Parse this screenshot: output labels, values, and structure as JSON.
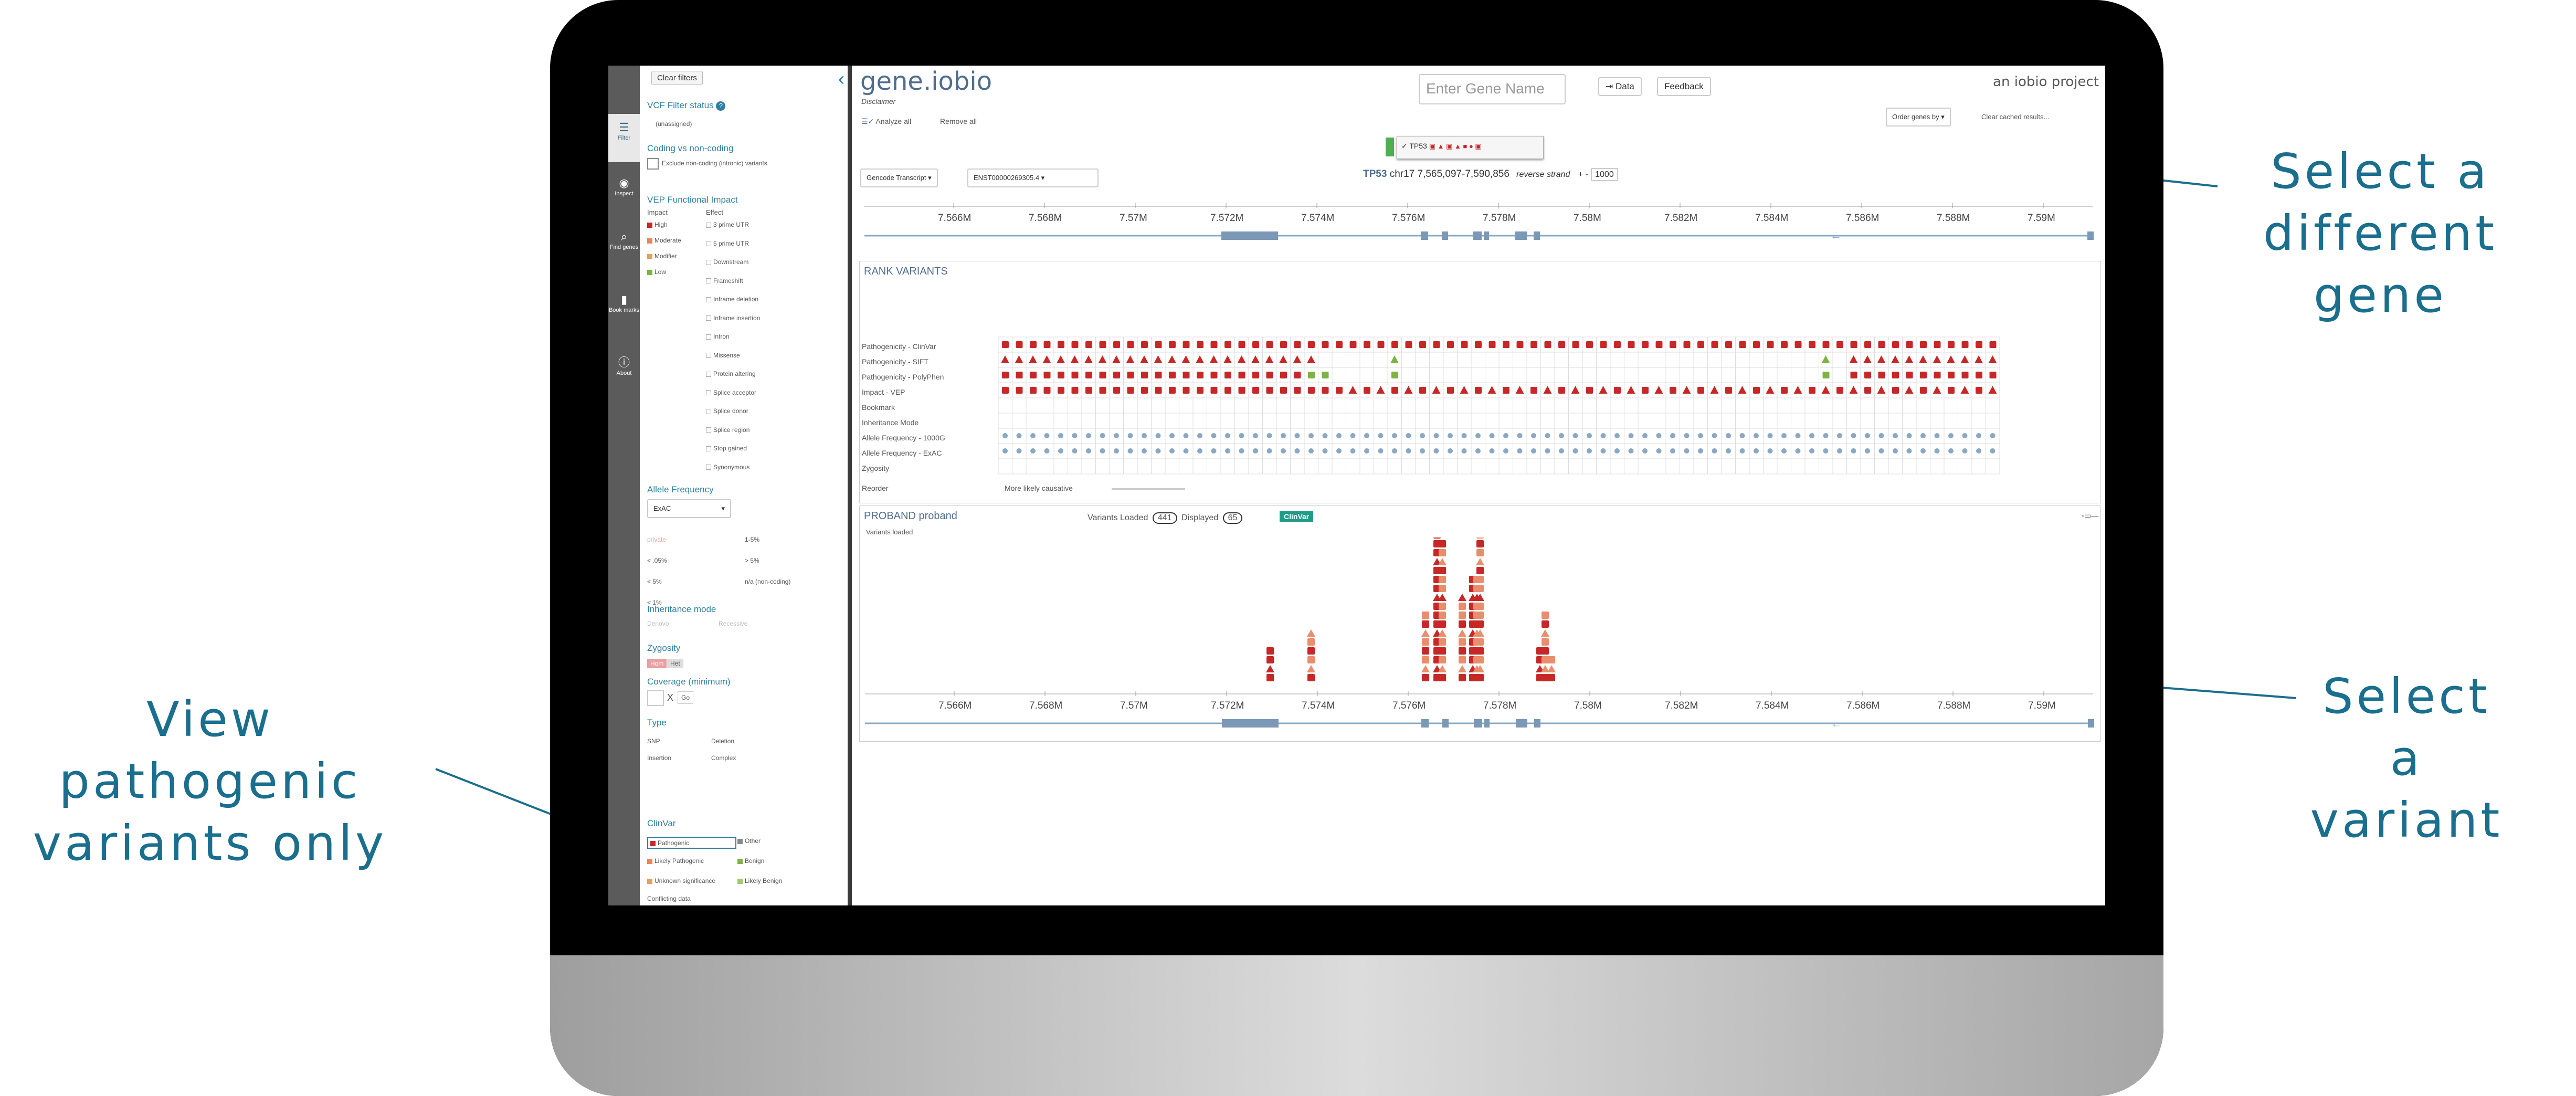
{
  "callouts": {
    "select_gene": [
      "Select a",
      "different gene"
    ],
    "select_variant": [
      "Select a",
      "variant"
    ],
    "pathogenic": [
      "View pathogenic",
      "variants only"
    ]
  },
  "rail": [
    {
      "label": "Filter",
      "icon": "filter-icon"
    },
    {
      "label": "Inspect",
      "icon": "eye-icon"
    },
    {
      "label": "Find genes",
      "icon": "find-genes-icon"
    },
    {
      "label": "Book marks",
      "icon": "bookmark-icon"
    },
    {
      "label": "About",
      "icon": "info-icon"
    }
  ],
  "sidebar": {
    "clear_filters": "Clear filters",
    "vcf_title": "VCF Filter status",
    "vcf_value": "(unassigned)",
    "coding_title": "Coding vs non-coding",
    "coding_opt": "Exclude non-coding (intronic) variants",
    "vep_title": "VEP Functional Impact",
    "impact_label": "Impact",
    "effect_label": "Effect",
    "impacts": [
      "High",
      "Moderate",
      "Modifier",
      "Low"
    ],
    "effects": [
      "3 prime UTR",
      "5 prime UTR",
      "Downstream",
      "Frameshift",
      "Inframe deletion",
      "Inframe insertion",
      "Intron",
      "Missense",
      "Protein altering",
      "Splice acceptor",
      "Splice donor",
      "Splice region",
      "Stop gained",
      "Synonymous"
    ],
    "af_title": "Allele Frequency",
    "af_select": "ExAC",
    "af_left": [
      "private",
      "< .05%",
      "< 5%",
      "< 1%"
    ],
    "af_right": [
      "1-5%",
      "> 5%",
      "n/a (non-coding)"
    ],
    "inh_title": "Inheritance mode",
    "inh_opts": [
      "Denovo",
      "Recessive"
    ],
    "zyg_title": "Zygosity",
    "zyg_opts": [
      "Hom",
      "Het"
    ],
    "cov_title": "Coverage (minimum)",
    "cov_x": "X",
    "cov_go": "Go",
    "type_title": "Type",
    "types": [
      "SNP",
      "Deletion",
      "Insertion",
      "Complex"
    ],
    "clinvar_title": "ClinVar",
    "clinvar_opts": [
      "Pathogenic",
      "Other",
      "Likely Pathogenic",
      "Benign",
      "Unknown significance",
      "Likely Benign"
    ],
    "conflict": "Conflicting data"
  },
  "toolbar": {
    "brand": "gene.iobio",
    "disclaimer": "Disclaimer",
    "analyze": "Analyze all",
    "remove": "Remove all",
    "gene_placeholder": "Enter Gene Name",
    "data": "Data",
    "feedback": "Feedback",
    "iobio": "an iobio project",
    "order": "Order genes by",
    "clear_cache": "Clear cached results...",
    "transcript": "Gencode Transcript",
    "transcript_id": "ENST00000269305.4",
    "gene_chip": "TP53"
  },
  "locus": {
    "gene": "TP53",
    "coords": "chr17 7,565,097-7,590,856",
    "strand": "reverse strand",
    "pm": "+ -",
    "flank": "1000"
  },
  "axis_ticks": [
    "7.566M",
    "7.568M",
    "7.57M",
    "7.572M",
    "7.574M",
    "7.576M",
    "7.578M",
    "7.58M",
    "7.582M",
    "7.584M",
    "7.586M",
    "7.588M",
    "7.59M"
  ],
  "rank": {
    "title": "RANK VARIANTS",
    "rows": [
      "Pathogenicity - ClinVar",
      "Pathogenicity - SIFT",
      "Pathogenicity - PolyPhen",
      "Impact - VEP",
      "Bookmark",
      "Inheritance Mode",
      "Allele Frequency - 1000G",
      "Allele Frequency - ExAC",
      "Zygosity"
    ],
    "reorder": "Reorder",
    "more_likely": "More likely causative"
  },
  "proband": {
    "title": "PROBAND proband",
    "loaded_label": "Variants Loaded",
    "loaded": "441",
    "displayed_label": "Displayed",
    "displayed": "65",
    "clinvar": "ClinVar",
    "status": "Variants loaded"
  },
  "colors": {
    "accent": "#1a6e8e",
    "brand": "#4f6d8f",
    "path": "#c62828",
    "mod": "#e88e6e",
    "benign": "#7cb342"
  }
}
